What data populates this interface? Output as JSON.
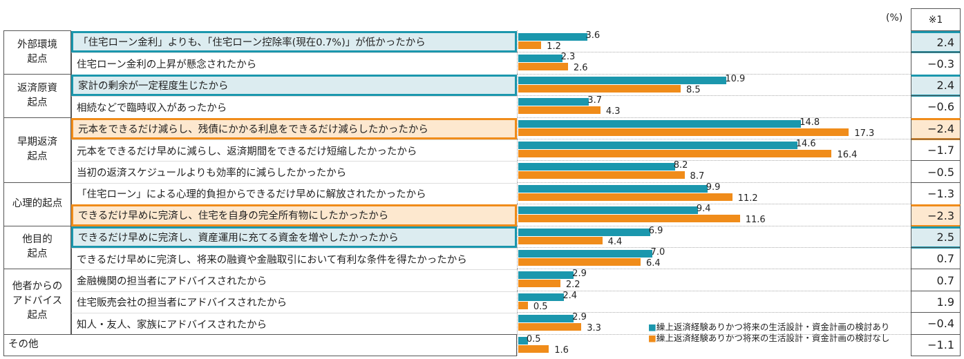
{
  "chart_data": {
    "type": "bar",
    "orientation": "horizontal",
    "unit_label": "(%)",
    "diff_header": "※1",
    "colors": {
      "series1": "#1b97ad",
      "series2": "#f08c1a",
      "highlight_teal": "#1b97ad",
      "highlight_orange": "#f08c1a"
    },
    "groups": [
      {
        "label": "外部環境\n起点",
        "rows": [
          0,
          1
        ]
      },
      {
        "label": "返済原資\n起点",
        "rows": [
          2,
          3
        ]
      },
      {
        "label": "早期返済\n起点",
        "rows": [
          4,
          5,
          6
        ]
      },
      {
        "label": "心理的起点",
        "rows": [
          7,
          8
        ]
      },
      {
        "label": "他目的\n起点",
        "rows": [
          9,
          10
        ]
      },
      {
        "label": "他者からの\nアドバイス\n起点",
        "rows": [
          11,
          12,
          13
        ]
      },
      {
        "label": "その他",
        "rows": [
          14
        ]
      }
    ],
    "categories": [
      "「住宅ローン金利」よりも、「住宅ローン控除率(現在0.7%)」が低かったから",
      "住宅ローン金利の上昇が懸念されたから",
      "家計の剰余が一定程度生じたから",
      "相続などで臨時収入があったから",
      "元本をできるだけ減らし、残債にかかる利息をできるだけ減らしたかったから",
      "元本をできるだけ早めに減らし、返済期間をできるだけ短縮したかったから",
      "当初の返済スケジュールよりも効率的に減らしたかったから",
      "「住宅ローン」による心理的負担からできるだけ早めに解放されたかったから",
      "できるだけ早めに完済し、住宅を自身の完全所有物にしたかったから",
      "できるだけ早めに完済し、資産運用に充てる資金を増やしたかったから",
      "できるだけ早めに完済し、将来の融資や金融取引において有利な条件を得たかったから",
      "金融機関の担当者にアドバイスされたから",
      "住宅販売会社の担当者にアドバイスされたから",
      "知人・友人、家族にアドバイスされたから",
      ""
    ],
    "highlight": [
      "teal",
      "",
      "teal",
      "",
      "orange",
      "",
      "",
      "",
      "orange",
      "teal",
      "",
      "",
      "",
      "",
      ""
    ],
    "series": [
      {
        "name": "繰上返済経験ありかつ将来の生活設計・資金計画の検討あり",
        "values": [
          3.6,
          2.3,
          10.9,
          3.7,
          14.8,
          14.6,
          8.2,
          9.9,
          9.4,
          6.9,
          7.0,
          2.9,
          2.4,
          2.9,
          0.5
        ]
      },
      {
        "name": "繰上返済経験ありかつ将来の生活設計・資金計画の検討なし",
        "values": [
          1.2,
          2.6,
          8.5,
          4.3,
          17.3,
          16.4,
          8.7,
          11.2,
          11.6,
          4.4,
          6.4,
          2.2,
          0.5,
          3.3,
          1.6
        ]
      }
    ],
    "diff": [
      "2.4",
      "−0.3",
      "2.4",
      "−0.6",
      "−2.4",
      "−1.7",
      "−0.5",
      "−1.3",
      "−2.3",
      "2.5",
      "0.7",
      "0.7",
      "1.9",
      "−0.4",
      "−1.1"
    ],
    "value_labels": [
      [
        "3.6",
        "2.3",
        "10.9",
        "3.7",
        "14.8",
        "14.6",
        "8.2",
        "9.9",
        "9.4",
        "6.9",
        "7.0",
        "2.9",
        "2.4",
        "2.9",
        "0.5"
      ],
      [
        "1.2",
        "2.6",
        "8.5",
        "4.3",
        "17.3",
        "16.4",
        "8.7",
        "11.2",
        "11.6",
        "4.4",
        "6.4",
        "2.2",
        "0.5",
        "3.3",
        "1.6"
      ]
    ]
  }
}
